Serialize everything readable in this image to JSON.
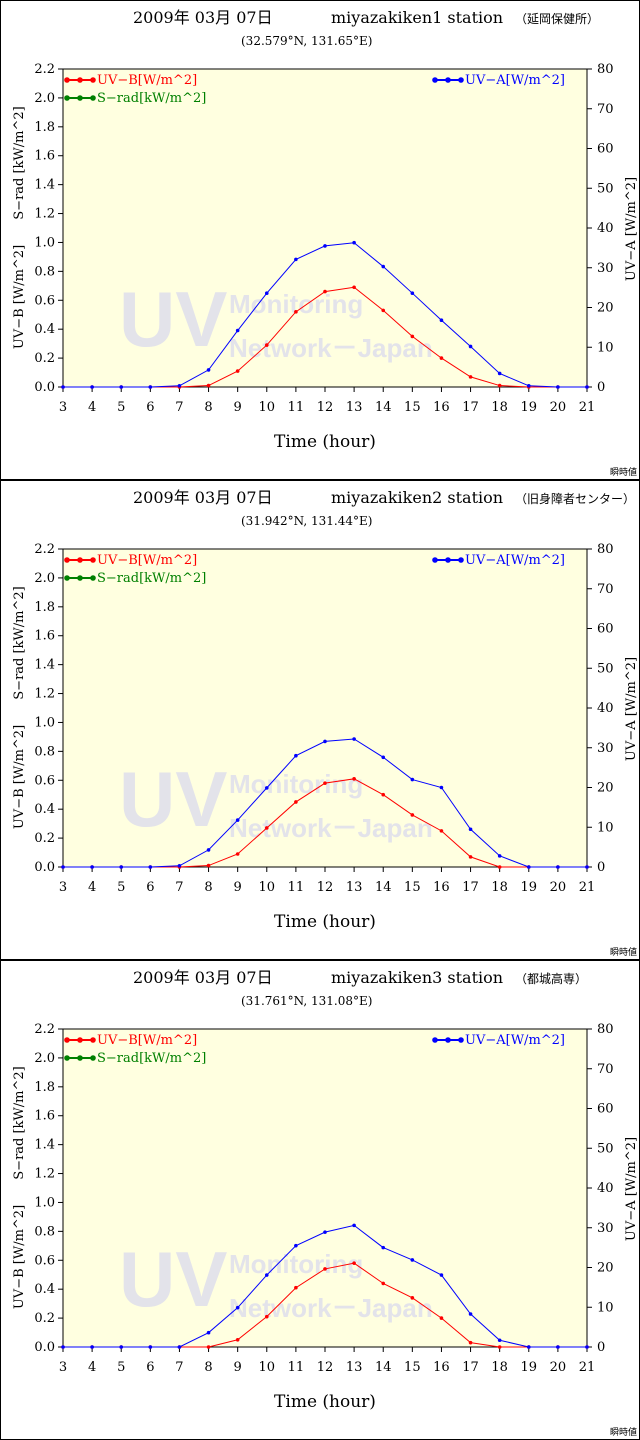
{
  "footer_label": "瞬時値",
  "watermark": {
    "big": "UV",
    "line1": "Monitoring",
    "line2": "Network－Japan"
  },
  "colors": {
    "uvb": "#ff0000",
    "srad": "#008000",
    "uva": "#0000ff",
    "plot_bg": "#ffffe0"
  },
  "chart_data": [
    {
      "type": "line",
      "date": "2009年 03月 07日",
      "station": "miyazakiken1 station",
      "station_note": "（延岡保健所）",
      "coords": "(32.579°N, 131.65°E)",
      "xlabel": "Time (hour)",
      "ylabel_left_1": "UV−B [W/m^2]",
      "ylabel_left_2": "S−rad [kW/m^2]",
      "ylabel_right": "UV−A [W/m^2]",
      "x": [
        3,
        4,
        5,
        6,
        7,
        8,
        9,
        10,
        11,
        12,
        13,
        14,
        15,
        16,
        17,
        18,
        19,
        20,
        21
      ],
      "xlim": [
        3,
        21
      ],
      "ylim_left": [
        0,
        2.2
      ],
      "ylim_right": [
        0,
        80
      ],
      "yticks_left": [
        "0.0",
        "0.2",
        "0.4",
        "0.6",
        "0.8",
        "1.0",
        "1.2",
        "1.4",
        "1.6",
        "1.8",
        "2.0",
        "2.2"
      ],
      "yticks_right": [
        "0",
        "10",
        "20",
        "30",
        "40",
        "50",
        "60",
        "70",
        "80"
      ],
      "legend": {
        "uvb": "UV−B[W/m^2]",
        "srad": "S−rad[kW/m^2]",
        "uva": "UV−A[W/m^2]"
      },
      "series": [
        {
          "name": "UV−B[W/m^2]",
          "axis": "left",
          "values": [
            0,
            0,
            0,
            0,
            0.0,
            0.01,
            0.11,
            0.29,
            0.52,
            0.66,
            0.69,
            0.53,
            0.35,
            0.2,
            0.07,
            0.01,
            0,
            0,
            0
          ]
        },
        {
          "name": "UV−A[W/m^2]",
          "axis": "right",
          "values": [
            0,
            0,
            0,
            0,
            0.3,
            4.3,
            14.2,
            23.6,
            32.1,
            35.5,
            36.3,
            30.3,
            23.6,
            16.8,
            10.2,
            3.4,
            0.3,
            0,
            0
          ]
        }
      ]
    },
    {
      "type": "line",
      "date": "2009年 03月 07日",
      "station": "miyazakiken2 station",
      "station_note": "（旧身障者センター）",
      "coords": "(31.942°N, 131.44°E)",
      "xlabel": "Time (hour)",
      "ylabel_left_1": "UV−B [W/m^2]",
      "ylabel_left_2": "S−rad [kW/m^2]",
      "ylabel_right": "UV−A [W/m^2]",
      "x": [
        3,
        4,
        5,
        6,
        7,
        8,
        9,
        10,
        11,
        12,
        13,
        14,
        15,
        16,
        17,
        18,
        19,
        20,
        21
      ],
      "xlim": [
        3,
        21
      ],
      "ylim_left": [
        0,
        2.2
      ],
      "ylim_right": [
        0,
        80
      ],
      "yticks_left": [
        "0.0",
        "0.2",
        "0.4",
        "0.6",
        "0.8",
        "1.0",
        "1.2",
        "1.4",
        "1.6",
        "1.8",
        "2.0",
        "2.2"
      ],
      "yticks_right": [
        "0",
        "10",
        "20",
        "30",
        "40",
        "50",
        "60",
        "70",
        "80"
      ],
      "legend": {
        "uvb": "UV−B[W/m^2]",
        "srad": "S−rad[kW/m^2]",
        "uva": "UV−A[W/m^2]"
      },
      "series": [
        {
          "name": "UV−B[W/m^2]",
          "axis": "left",
          "values": [
            0,
            0,
            0,
            0,
            0.0,
            0.01,
            0.09,
            0.27,
            0.45,
            0.58,
            0.61,
            0.5,
            0.36,
            0.25,
            0.07,
            0.0,
            0,
            0,
            0
          ]
        },
        {
          "name": "UV−A[W/m^2]",
          "axis": "right",
          "values": [
            0,
            0,
            0,
            0,
            0.3,
            4.3,
            11.8,
            19.9,
            28.0,
            31.6,
            32.2,
            27.6,
            22.0,
            20.0,
            9.5,
            2.8,
            0,
            0,
            0
          ]
        }
      ]
    },
    {
      "type": "line",
      "date": "2009年 03月 07日",
      "station": "miyazakiken3 station",
      "station_note": "（都城高専）",
      "coords": "(31.761°N, 131.08°E)",
      "xlabel": "Time (hour)",
      "ylabel_left_1": "UV−B [W/m^2]",
      "ylabel_left_2": "S−rad [kW/m^2]",
      "ylabel_right": "UV−A [W/m^2]",
      "x": [
        3,
        4,
        5,
        6,
        7,
        8,
        9,
        10,
        11,
        12,
        13,
        14,
        15,
        16,
        17,
        18,
        19,
        20,
        21
      ],
      "xlim": [
        3,
        21
      ],
      "ylim_left": [
        0,
        2.2
      ],
      "ylim_right": [
        0,
        80
      ],
      "yticks_left": [
        "0.0",
        "0.2",
        "0.4",
        "0.6",
        "0.8",
        "1.0",
        "1.2",
        "1.4",
        "1.6",
        "1.8",
        "2.0",
        "2.2"
      ],
      "yticks_right": [
        "0",
        "10",
        "20",
        "30",
        "40",
        "50",
        "60",
        "70",
        "80"
      ],
      "legend": {
        "uvb": "UV−B[W/m^2]",
        "srad": "S−rad[kW/m^2]",
        "uva": "UV−A[W/m^2]"
      },
      "series": [
        {
          "name": "UV−B[W/m^2]",
          "axis": "left",
          "values": [
            0,
            0,
            0,
            0,
            0,
            0.0,
            0.05,
            0.21,
            0.41,
            0.54,
            0.58,
            0.44,
            0.34,
            0.2,
            0.03,
            0.0,
            0,
            0,
            0
          ]
        },
        {
          "name": "UV−A[W/m^2]",
          "axis": "right",
          "values": [
            0,
            0,
            0,
            0,
            0,
            3.6,
            9.9,
            18.1,
            25.5,
            28.9,
            30.6,
            25.0,
            21.9,
            18.1,
            8.3,
            1.7,
            0,
            0,
            0
          ]
        }
      ]
    }
  ]
}
